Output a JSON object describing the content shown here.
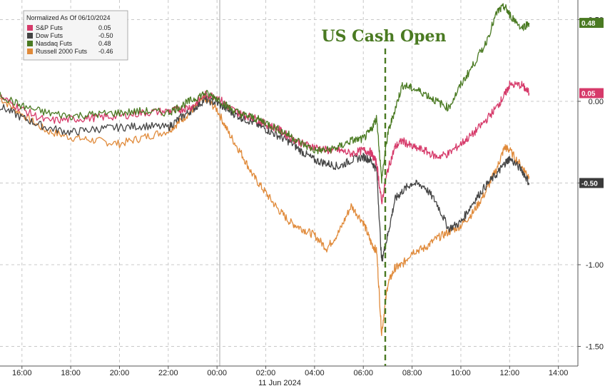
{
  "chart_data": {
    "type": "line",
    "title": "",
    "xlabel": "11 Jun 2024",
    "ylabel": "",
    "x_ticks": [
      "16:00",
      "18:00",
      "20:00",
      "22:00",
      "00:00",
      "02:00",
      "04:00",
      "06:00",
      "08:00",
      "10:00",
      "12:00",
      "14:00"
    ],
    "x_tick_hours": [
      -8,
      -6,
      -4,
      -2,
      0,
      2,
      4,
      6,
      8,
      10,
      12,
      14
    ],
    "x_range_hours": [
      -8.9,
      14.8
    ],
    "y_ticks": [
      "-1.50",
      "-1.00",
      "-0.50",
      "0.00",
      "0.50"
    ],
    "y_tick_values": [
      -1.5,
      -1.0,
      -0.5,
      0.0,
      0.5
    ],
    "ylim": [
      -1.62,
      0.62
    ],
    "grid": true,
    "legend_position": "top-left",
    "legend": {
      "title": "Normalized As Of 06/10/2024",
      "entries": [
        {
          "name": "S&P Futs",
          "value": "0.05"
        },
        {
          "name": "Dow Futs",
          "value": "-0.50"
        },
        {
          "name": "Nasdaq Futs",
          "value": "0.48"
        },
        {
          "name": "Russell 2000 Futs",
          "value": "-0.46"
        }
      ]
    },
    "end_labels": [
      {
        "text": "0.48",
        "value": 0.48,
        "color": "#4a7a22"
      },
      {
        "text": "0.05",
        "value": 0.05,
        "color": "#d63a6a"
      },
      {
        "text": "-0.50",
        "value": -0.5,
        "color": "#3a3a3a"
      }
    ],
    "annotations": [
      {
        "text": "US Cash Open",
        "x_hour": 6.75,
        "color": "#4a7a22"
      }
    ],
    "series": [
      {
        "name": "S&P Futs",
        "color": "#d63a6a",
        "x": [
          -8.9,
          -8,
          -7,
          -6,
          -5,
          -4,
          -3,
          -2,
          -1.5,
          -1,
          -0.5,
          0,
          0.5,
          1,
          1.5,
          2,
          2.5,
          3,
          3.5,
          4,
          4.5,
          5,
          5.5,
          6,
          6.3,
          6.55,
          6.75,
          7,
          7.3,
          7.6,
          8,
          8.5,
          9,
          9.5,
          10,
          10.5,
          11,
          11.5,
          11.8,
          12,
          12.5,
          12.8
        ],
        "y": [
          0.03,
          -0.05,
          -0.12,
          -0.11,
          -0.1,
          -0.09,
          -0.07,
          -0.06,
          -0.05,
          -0.03,
          0.04,
          0.03,
          -0.04,
          -0.08,
          -0.1,
          -0.14,
          -0.17,
          -0.22,
          -0.26,
          -0.28,
          -0.3,
          -0.3,
          -0.32,
          -0.3,
          -0.31,
          -0.38,
          -0.62,
          -0.42,
          -0.28,
          -0.24,
          -0.28,
          -0.3,
          -0.34,
          -0.32,
          -0.26,
          -0.2,
          -0.12,
          -0.03,
          0.04,
          0.1,
          0.1,
          0.05
        ]
      },
      {
        "name": "Dow Futs",
        "color": "#444444",
        "x": [
          -8.9,
          -8,
          -7,
          -6,
          -5,
          -4,
          -3,
          -2,
          -1.5,
          -1,
          -0.5,
          0,
          0.5,
          1,
          1.5,
          2,
          2.5,
          3,
          3.5,
          4,
          4.5,
          5,
          5.5,
          6,
          6.3,
          6.55,
          6.75,
          7,
          7.3,
          7.6,
          8,
          8.5,
          9,
          9.5,
          10,
          10.5,
          11,
          11.5,
          11.8,
          12,
          12.5,
          12.8
        ],
        "y": [
          -0.03,
          -0.1,
          -0.16,
          -0.19,
          -0.17,
          -0.16,
          -0.15,
          -0.16,
          -0.1,
          -0.05,
          0.01,
          -0.01,
          -0.06,
          -0.1,
          -0.13,
          -0.17,
          -0.21,
          -0.25,
          -0.31,
          -0.36,
          -0.38,
          -0.4,
          -0.36,
          -0.34,
          -0.36,
          -0.42,
          -0.98,
          -0.82,
          -0.6,
          -0.55,
          -0.5,
          -0.52,
          -0.62,
          -0.78,
          -0.74,
          -0.62,
          -0.52,
          -0.44,
          -0.38,
          -0.35,
          -0.42,
          -0.5
        ]
      },
      {
        "name": "Nasdaq Futs",
        "color": "#4a7a22",
        "x": [
          -8.9,
          -8,
          -7,
          -6,
          -5,
          -4,
          -3,
          -2,
          -1.5,
          -1,
          -0.5,
          0,
          0.5,
          1,
          1.5,
          2,
          2.5,
          3,
          3.5,
          4,
          4.5,
          5,
          5.5,
          6,
          6.3,
          6.55,
          6.75,
          7,
          7.3,
          7.6,
          8,
          8.5,
          9,
          9.5,
          10,
          10.5,
          11,
          11.5,
          11.8,
          12,
          12.5,
          12.8
        ],
        "y": [
          0.04,
          -0.03,
          -0.07,
          -0.09,
          -0.08,
          -0.07,
          -0.06,
          -0.07,
          -0.03,
          0.01,
          0.05,
          0.02,
          -0.04,
          -0.08,
          -0.1,
          -0.13,
          -0.17,
          -0.21,
          -0.26,
          -0.3,
          -0.3,
          -0.28,
          -0.24,
          -0.23,
          -0.18,
          -0.1,
          -0.48,
          -0.2,
          -0.05,
          0.1,
          0.08,
          0.05,
          0.0,
          -0.04,
          0.1,
          0.22,
          0.35,
          0.55,
          0.58,
          0.53,
          0.45,
          0.48
        ]
      },
      {
        "name": "Russell 2000 Futs",
        "color": "#e08a3a",
        "x": [
          -8.9,
          -8,
          -7,
          -6,
          -5,
          -4,
          -3,
          -2,
          -1.5,
          -1,
          -0.5,
          0,
          0.5,
          1,
          1.5,
          2,
          2.5,
          3,
          3.5,
          4,
          4.5,
          5,
          5.5,
          6,
          6.3,
          6.55,
          6.75,
          7,
          7.3,
          7.6,
          8,
          8.5,
          9,
          9.5,
          10,
          10.5,
          11,
          11.5,
          11.8,
          12,
          12.5,
          12.8
        ],
        "y": [
          0.02,
          -0.08,
          -0.18,
          -0.22,
          -0.24,
          -0.26,
          -0.22,
          -0.18,
          -0.12,
          -0.05,
          0.02,
          -0.05,
          -0.2,
          -0.32,
          -0.46,
          -0.56,
          -0.66,
          -0.74,
          -0.78,
          -0.82,
          -0.9,
          -0.8,
          -0.64,
          -0.74,
          -0.86,
          -0.92,
          -1.42,
          -1.12,
          -1.02,
          -1.0,
          -0.92,
          -0.9,
          -0.84,
          -0.8,
          -0.76,
          -0.68,
          -0.56,
          -0.4,
          -0.28,
          -0.3,
          -0.4,
          -0.46
        ]
      }
    ]
  }
}
